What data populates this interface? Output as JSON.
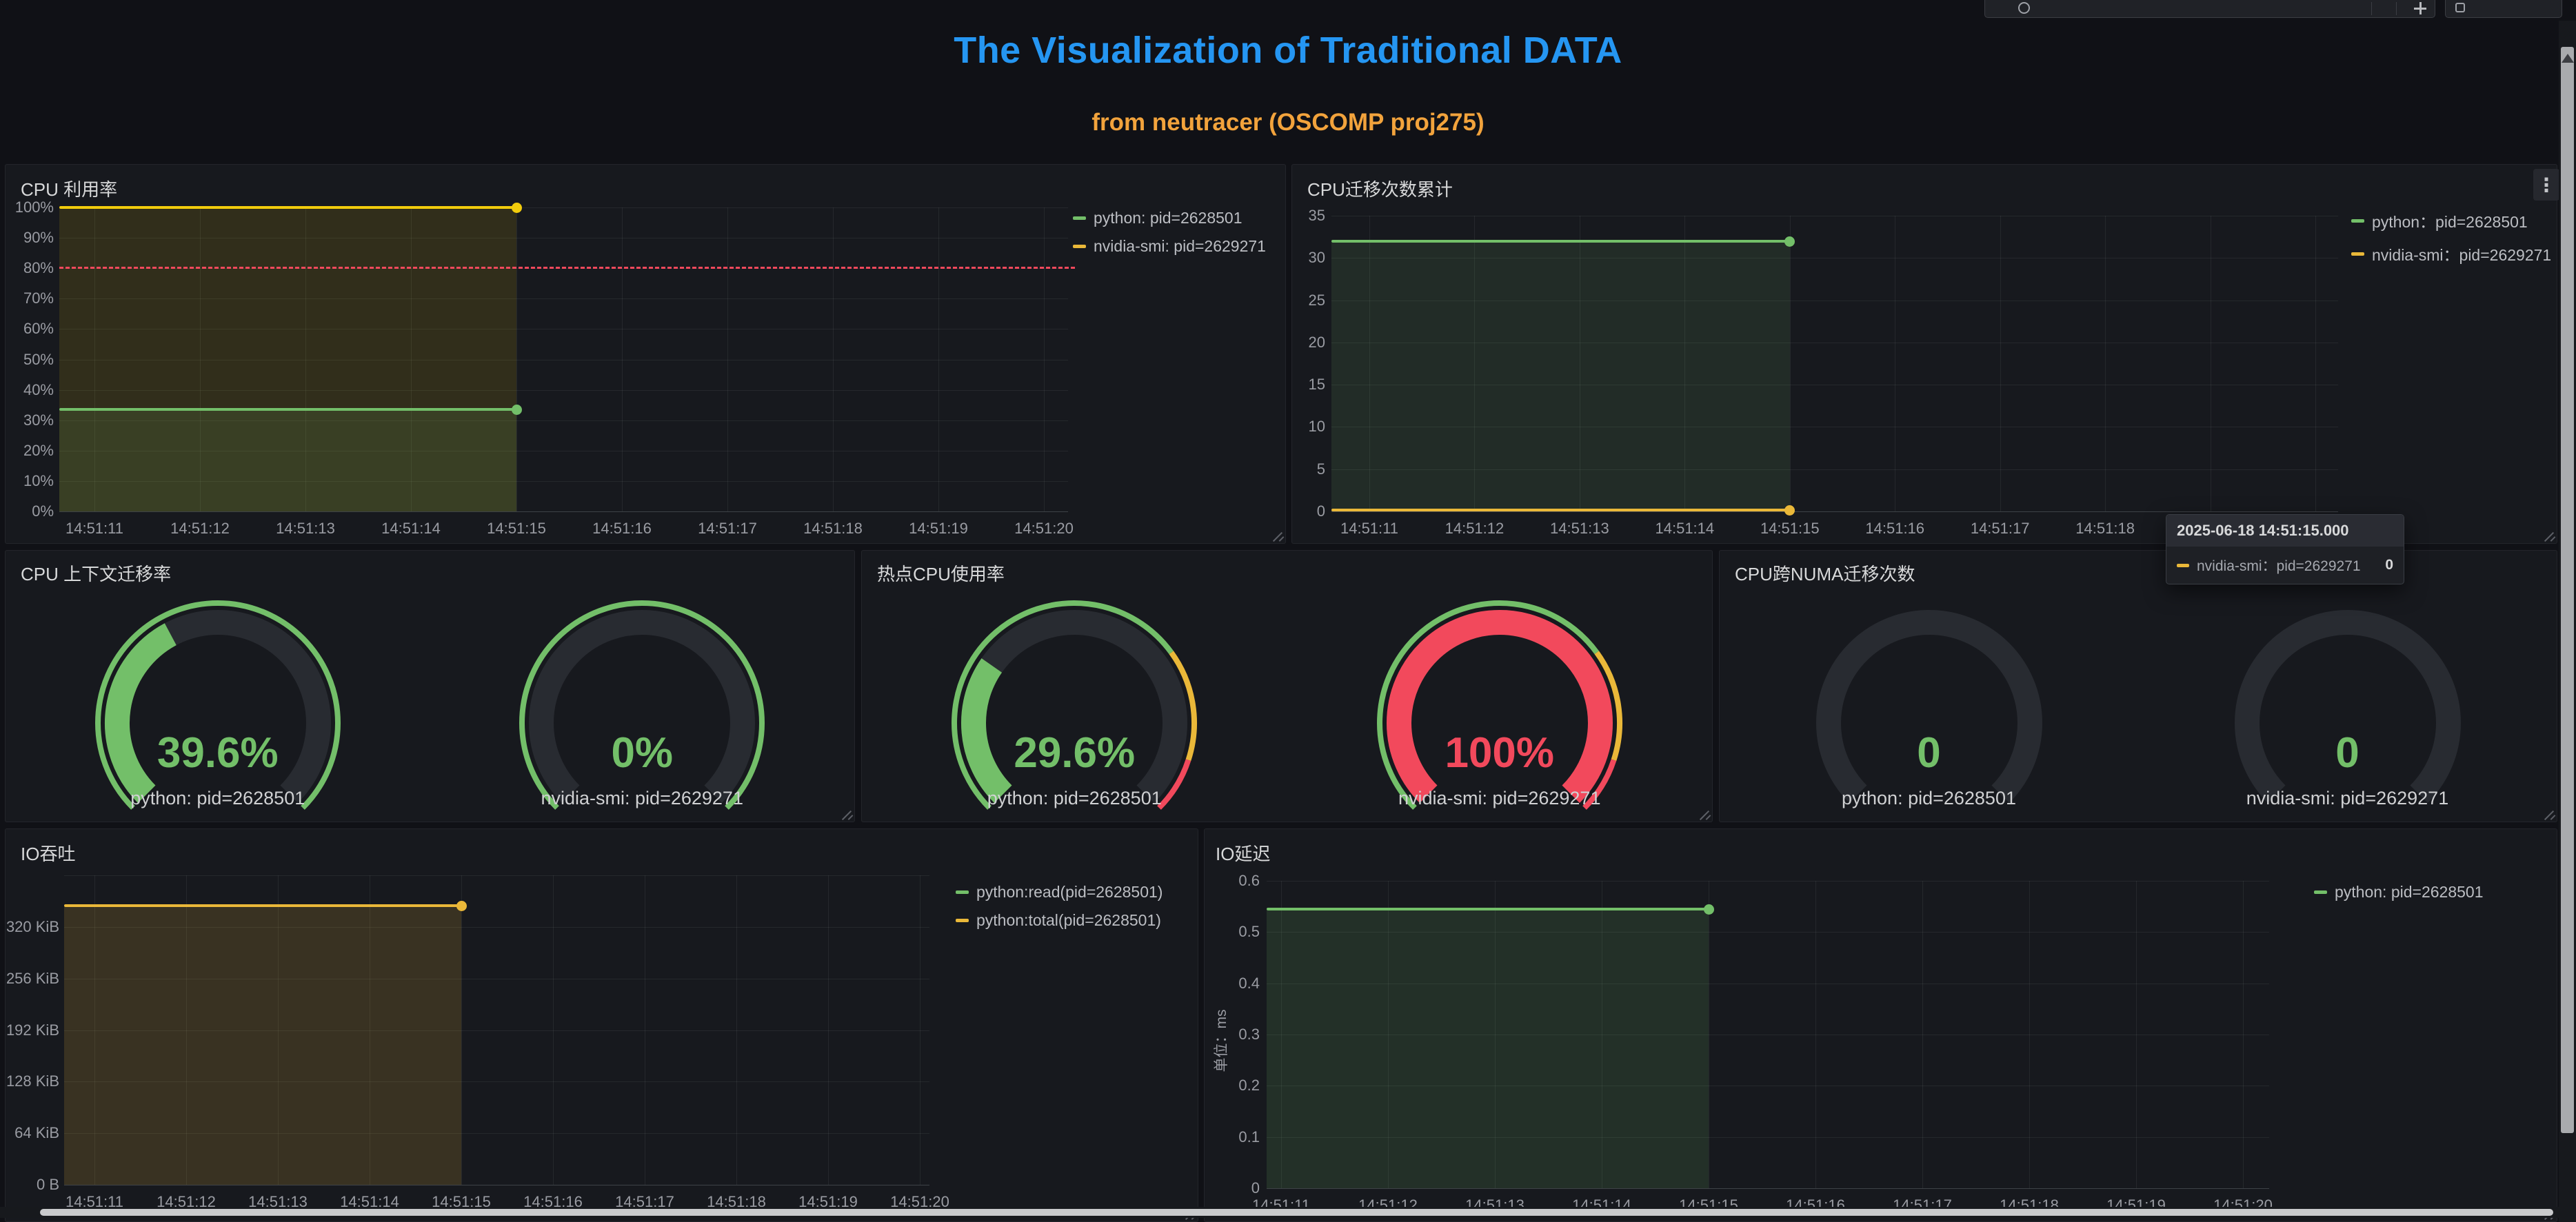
{
  "header": {
    "title": "The Visualization of Traditional DATA",
    "subtitle": "from neutracer (OSCOMP proj275)",
    "title_color": "#2596F2",
    "subtitle_color": "#F2A33C"
  },
  "icons": {
    "kebab_menu": "⋮"
  },
  "palette": {
    "green": "#73BF69",
    "yellow": "#EAB839",
    "bright_yellow": "#F2CC0C",
    "red": "#F2495C",
    "green_fill": "rgba(115,191,105,0.12)",
    "yellow_fill": "rgba(242,204,12,0.12)",
    "io_yellow_fill": "rgba(234,184,57,0.16)",
    "io_green_fill": "rgba(115,191,105,0.14)"
  },
  "time_ticks": [
    "14:51:11",
    "14:51:12",
    "14:51:13",
    "14:51:14",
    "14:51:15",
    "14:51:16",
    "14:51:17",
    "14:51:18",
    "14:51:19",
    "14:51:20"
  ],
  "tooltip": {
    "timestamp": "2025-06-18 14:51:15.000",
    "series_label": "nvidia-smi：pid=2629271",
    "value": "0",
    "swatch_color": "#EAB839"
  },
  "panels": {
    "cpu_util": {
      "title": "CPU 利用率",
      "y_ticks": [
        "100%",
        "90%",
        "80%",
        "70%",
        "60%",
        "50%",
        "40%",
        "30%",
        "20%",
        "10%",
        "0%"
      ],
      "legend": [
        {
          "label": "python: pid=2628501",
          "color": "#73BF69"
        },
        {
          "label": "nvidia-smi: pid=2629271",
          "color": "#EAB839"
        }
      ],
      "chart_data": {
        "type": "line",
        "x_range": [
          "14:51:11",
          "14:51:20"
        ],
        "data_end": "14:51:15",
        "ylim": [
          "0%",
          "100%"
        ],
        "threshold_pct": 80,
        "series": [
          {
            "name": "python: pid=2628501",
            "color": "#73BF69",
            "value_pct": 33.5
          },
          {
            "name": "nvidia-smi: pid=2629271",
            "color": "#F2CC0C",
            "value_pct": 100
          }
        ]
      }
    },
    "cpu_mig": {
      "title": "CPU迁移次数累计",
      "y_ticks": [
        "35",
        "30",
        "25",
        "20",
        "15",
        "10",
        "5",
        "0"
      ],
      "legend": [
        {
          "label": "python：pid=2628501",
          "color": "#73BF69"
        },
        {
          "label": "nvidia-smi：pid=2629271",
          "color": "#EAB839"
        }
      ],
      "chart_data": {
        "type": "line",
        "x_range": [
          "14:51:11",
          "14:51:20"
        ],
        "data_end": "14:51:15",
        "ylim": [
          0,
          35
        ],
        "series": [
          {
            "name": "python：pid=2628501",
            "color": "#73BF69",
            "value": 32
          },
          {
            "name": "nvidia-smi：pid=2629271",
            "color": "#EAB839",
            "value": 0
          }
        ]
      }
    },
    "ctx": {
      "title": "CPU 上下文迁移率",
      "gauges": [
        {
          "value": "39.6%",
          "value_color": "#73BF69",
          "label": "python: pid=2628501",
          "fraction": 0.396,
          "arc_color": "#73BF69",
          "ring": [
            {
              "from": 0,
              "to": 1,
              "color": "#73BF69"
            }
          ]
        },
        {
          "value": "0%",
          "value_color": "#73BF69",
          "label": "nvidia-smi: pid=2629271",
          "fraction": 0,
          "arc_color": "#73BF69",
          "ring": [
            {
              "from": 0,
              "to": 1,
              "color": "#73BF69"
            }
          ]
        }
      ]
    },
    "hot": {
      "title": "热点CPU使用率",
      "gauges": [
        {
          "value": "29.6%",
          "value_color": "#73BF69",
          "label": "python: pid=2628501",
          "fraction": 0.296,
          "arc_color": "#73BF69",
          "ring": [
            {
              "from": 0,
              "to": 0.7,
              "color": "#73BF69"
            },
            {
              "from": 0.7,
              "to": 0.9,
              "color": "#EAB839"
            },
            {
              "from": 0.9,
              "to": 1,
              "color": "#F2495C"
            }
          ]
        },
        {
          "value": "100%",
          "value_color": "#F2495C",
          "label": "nvidia-smi: pid=2629271",
          "fraction": 1,
          "arc_color": "#F2495C",
          "ring": [
            {
              "from": 0,
              "to": 0.7,
              "color": "#73BF69"
            },
            {
              "from": 0.7,
              "to": 0.9,
              "color": "#EAB839"
            },
            {
              "from": 0.9,
              "to": 1,
              "color": "#F2495C"
            }
          ]
        }
      ]
    },
    "numa": {
      "title": "CPU跨NUMA迁移次数",
      "gauges": [
        {
          "value": "0",
          "value_color": "#73BF69",
          "label": "python: pid=2628501",
          "fraction": 0,
          "arc_color": "#73BF69",
          "ring": []
        },
        {
          "value": "0",
          "value_color": "#73BF69",
          "label": "nvidia-smi: pid=2629271",
          "fraction": 0,
          "arc_color": "#73BF69",
          "ring": []
        }
      ]
    },
    "io_thru": {
      "title": "IO吞吐",
      "y_ticks": [
        "",
        "320 KiB",
        "256 KiB",
        "192 KiB",
        "128 KiB",
        "64 KiB",
        "0 B"
      ],
      "legend": [
        {
          "label": "python:read(pid=2628501)",
          "color": "#73BF69"
        },
        {
          "label": "python:total(pid=2628501)",
          "color": "#EAB839"
        }
      ],
      "chart_data": {
        "type": "line",
        "x_range": [
          "14:51:11",
          "14:51:20"
        ],
        "data_end": "14:51:15",
        "ylim": [
          "0 B",
          "384 KiB"
        ],
        "series": [
          {
            "name": "python:read(pid=2628501)",
            "color": "#73BF69",
            "value": "≈345 KiB"
          },
          {
            "name": "python:total(pid=2628501)",
            "color": "#EAB839",
            "value": "≈345 KiB"
          }
        ]
      }
    },
    "io_lat": {
      "title": "IO延迟",
      "ylabel": "单位：ms",
      "y_ticks": [
        "0.6",
        "0.5",
        "0.4",
        "0.3",
        "0.2",
        "0.1",
        "0"
      ],
      "legend": [
        {
          "label": "python: pid=2628501",
          "color": "#73BF69"
        }
      ],
      "chart_data": {
        "type": "line",
        "x_range": [
          "14:51:11",
          "14:51:20"
        ],
        "data_end": "14:51:15",
        "ylim": [
          0,
          0.6
        ],
        "series": [
          {
            "name": "python: pid=2628501",
            "color": "#73BF69",
            "value": 0.545
          }
        ]
      }
    }
  }
}
